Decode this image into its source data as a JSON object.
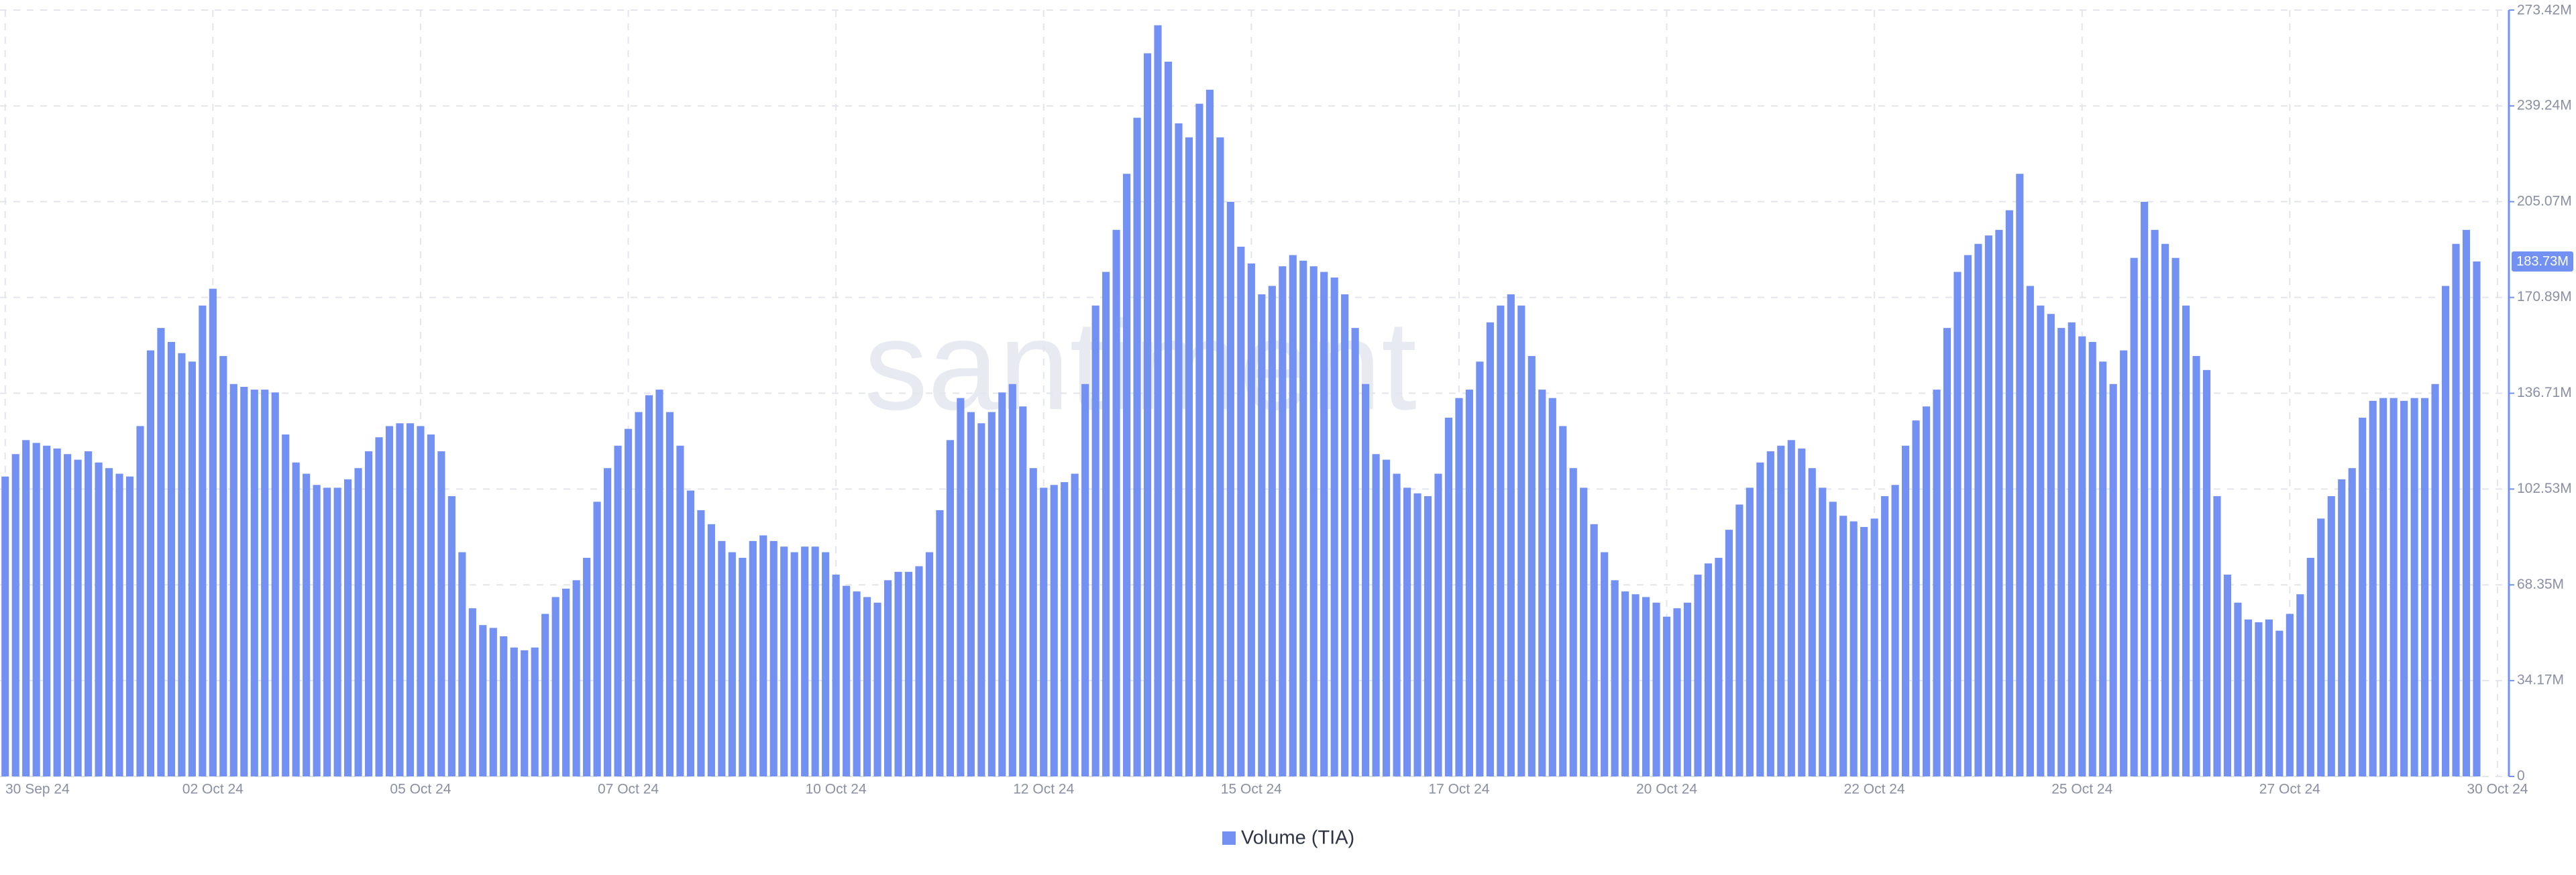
{
  "chart_data": {
    "type": "bar",
    "series": [
      {
        "name": "Volume (TIA)",
        "color": "#7391f2",
        "values": [
          107,
          115,
          120,
          119,
          118,
          117,
          115,
          113,
          116,
          112,
          110,
          108,
          107,
          125,
          152,
          160,
          155,
          151,
          148,
          168,
          174,
          150,
          140,
          139,
          138,
          138,
          137,
          122,
          112,
          108,
          104,
          103,
          103,
          106,
          110,
          116,
          121,
          125,
          126,
          126,
          125,
          122,
          116,
          100,
          80,
          60,
          54,
          53,
          50,
          46,
          45,
          46,
          58,
          64,
          67,
          70,
          78,
          98,
          110,
          118,
          124,
          130,
          136,
          138,
          130,
          118,
          102,
          95,
          90,
          84,
          80,
          78,
          84,
          86,
          84,
          82,
          80,
          82,
          82,
          80,
          72,
          68,
          66,
          64,
          62,
          70,
          73,
          73,
          75,
          80,
          95,
          120,
          135,
          130,
          126,
          130,
          137,
          140,
          132,
          110,
          103,
          104,
          105,
          108,
          140,
          168,
          180,
          195,
          215,
          235,
          258,
          268,
          255,
          233,
          228,
          240,
          245,
          228,
          205,
          189,
          183,
          172,
          175,
          182,
          186,
          184,
          182,
          180,
          178,
          172,
          160,
          140,
          115,
          113,
          108,
          103,
          101,
          100,
          108,
          128,
          135,
          138,
          148,
          162,
          168,
          172,
          168,
          150,
          138,
          135,
          125,
          110,
          103,
          90,
          80,
          70,
          66,
          65,
          64,
          62,
          57,
          60,
          62,
          72,
          76,
          78,
          88,
          97,
          103,
          112,
          116,
          118,
          120,
          117,
          110,
          103,
          98,
          93,
          91,
          89,
          92,
          100,
          104,
          118,
          127,
          132,
          138,
          160,
          180,
          186,
          190,
          193,
          195,
          202,
          215,
          175,
          168,
          165,
          160,
          162,
          157,
          155,
          148,
          140,
          152,
          185,
          205,
          195,
          190,
          185,
          168,
          150,
          145,
          100,
          72,
          62,
          56,
          55,
          56,
          52,
          58,
          65,
          78,
          92,
          100,
          106,
          110,
          128,
          134,
          135,
          135,
          134,
          135,
          135,
          140,
          175,
          190,
          195,
          183.73,
          null,
          null
        ]
      }
    ],
    "categories": [
      "30 Sep 24",
      null,
      null,
      null,
      null,
      null,
      null,
      null,
      null,
      null,
      null,
      null,
      null,
      null,
      null,
      null,
      null,
      null,
      null,
      null,
      "02 Oct 24",
      null,
      null,
      null,
      null,
      null,
      null,
      null,
      null,
      null,
      null,
      null,
      null,
      null,
      null,
      null,
      null,
      null,
      null,
      null,
      "05 Oct 24",
      null,
      null,
      null,
      null,
      null,
      null,
      null,
      null,
      null,
      null,
      null,
      null,
      null,
      null,
      null,
      null,
      null,
      null,
      null,
      "07 Oct 24",
      null,
      null,
      null,
      null,
      null,
      null,
      null,
      null,
      null,
      null,
      null,
      null,
      null,
      null,
      null,
      null,
      null,
      null,
      null,
      "10 Oct 24",
      null,
      null,
      null,
      null,
      null,
      null,
      null,
      null,
      null,
      null,
      null,
      null,
      null,
      null,
      null,
      null,
      null,
      null,
      null,
      "12 Oct 24",
      null,
      null,
      null,
      null,
      null,
      null,
      null,
      null,
      null,
      null,
      null,
      null,
      null,
      null,
      null,
      null,
      null,
      null,
      null,
      "15 Oct 24",
      null,
      null,
      null,
      null,
      null,
      null,
      null,
      null,
      null,
      null,
      null,
      null,
      null,
      null,
      null,
      null,
      null,
      null,
      null,
      "17 Oct 24",
      null,
      null,
      null,
      null,
      null,
      null,
      null,
      null,
      null,
      null,
      null,
      null,
      null,
      null,
      null,
      null,
      null,
      null,
      null,
      "20 Oct 24",
      null,
      null,
      null,
      null,
      null,
      null,
      null,
      null,
      null,
      null,
      null,
      null,
      null,
      null,
      null,
      null,
      null,
      null,
      null,
      "22 Oct 24",
      null,
      null,
      null,
      null,
      null,
      null,
      null,
      null,
      null,
      null,
      null,
      null,
      null,
      null,
      null,
      null,
      null,
      null,
      null,
      "25 Oct 24",
      null,
      null,
      null,
      null,
      null,
      null,
      null,
      null,
      null,
      null,
      null,
      null,
      null,
      null,
      null,
      null,
      null,
      null,
      null,
      "27 Oct 24",
      null,
      null,
      null,
      null,
      null,
      null,
      null,
      null,
      null,
      null,
      null,
      null,
      null,
      null,
      null,
      null,
      null,
      null,
      null,
      "30 Oct 24"
    ],
    "ylim": [
      0,
      273.42
    ],
    "yticks": [
      0,
      {
        "value": 34.17,
        "label": "34.17M"
      },
      {
        "value": 68.35,
        "label": "68.35M"
      },
      {
        "value": 102.53,
        "label": "102.53M"
      },
      {
        "value": 136.71,
        "label": "136.71M"
      },
      {
        "value": 170.89,
        "label": "170.89M"
      },
      {
        "value": 205.07,
        "label": "205.07M"
      },
      {
        "value": 239.24,
        "label": "239.24M"
      },
      {
        "value": 273.42,
        "label": "273.42M"
      }
    ],
    "current_value": {
      "value": 183.73,
      "label": "183.73M"
    },
    "watermark": "santiment",
    "grid": true,
    "legend": "bottom"
  }
}
